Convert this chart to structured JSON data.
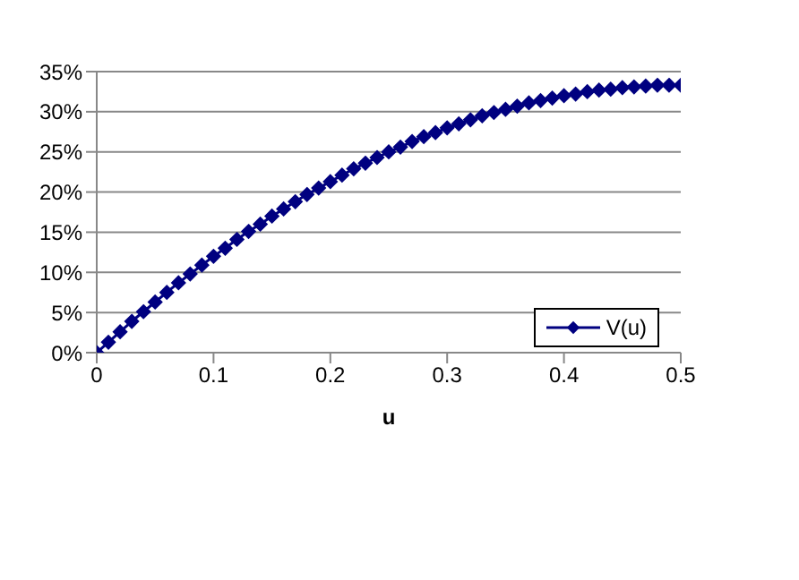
{
  "chart_data": {
    "type": "line",
    "xlabel": "u",
    "x": [
      0,
      0.01,
      0.02,
      0.03,
      0.04,
      0.05,
      0.06,
      0.07,
      0.08,
      0.09,
      0.1,
      0.11,
      0.12,
      0.13,
      0.14,
      0.15,
      0.16,
      0.17,
      0.18,
      0.19,
      0.2,
      0.21,
      0.22,
      0.23,
      0.24,
      0.25,
      0.26,
      0.27,
      0.28,
      0.29,
      0.3,
      0.31,
      0.32,
      0.33,
      0.34,
      0.35,
      0.36,
      0.37,
      0.38,
      0.39,
      0.4,
      0.41,
      0.42,
      0.43,
      0.44,
      0.45,
      0.46,
      0.47,
      0.48,
      0.49,
      0.5
    ],
    "series": [
      {
        "name": "V(u)",
        "color": "#000080",
        "values": [
          0,
          1.3,
          2.6,
          3.9,
          5.1,
          6.3,
          7.5,
          8.7,
          9.8,
          10.9,
          12.0,
          13.0,
          14.1,
          15.1,
          16.0,
          17.0,
          17.9,
          18.8,
          19.7,
          20.5,
          21.3,
          22.1,
          22.9,
          23.6,
          24.3,
          25.0,
          25.6,
          26.3,
          26.9,
          27.4,
          28.0,
          28.5,
          29.0,
          29.5,
          29.9,
          30.3,
          30.7,
          31.1,
          31.4,
          31.7,
          32.0,
          32.2,
          32.5,
          32.7,
          32.8,
          33.0,
          33.1,
          33.2,
          33.3,
          33.3,
          33.3
        ]
      }
    ],
    "xlim": [
      0,
      0.5
    ],
    "xticks": [
      0,
      0.1,
      0.2,
      0.3,
      0.4,
      0.5
    ],
    "ylim": [
      0,
      35
    ],
    "yticks": [
      {
        "value": 0,
        "label": "0%"
      },
      {
        "value": 5,
        "label": "5%"
      },
      {
        "value": 10,
        "label": "10%"
      },
      {
        "value": 15,
        "label": "15%"
      },
      {
        "value": 20,
        "label": "20%"
      },
      {
        "value": 25,
        "label": "25%"
      },
      {
        "value": 30,
        "label": "30%"
      },
      {
        "value": 35,
        "label": "35%"
      }
    ],
    "grid": "y",
    "legend": "bottom right",
    "marker": "diamond",
    "line_style": "solid"
  }
}
